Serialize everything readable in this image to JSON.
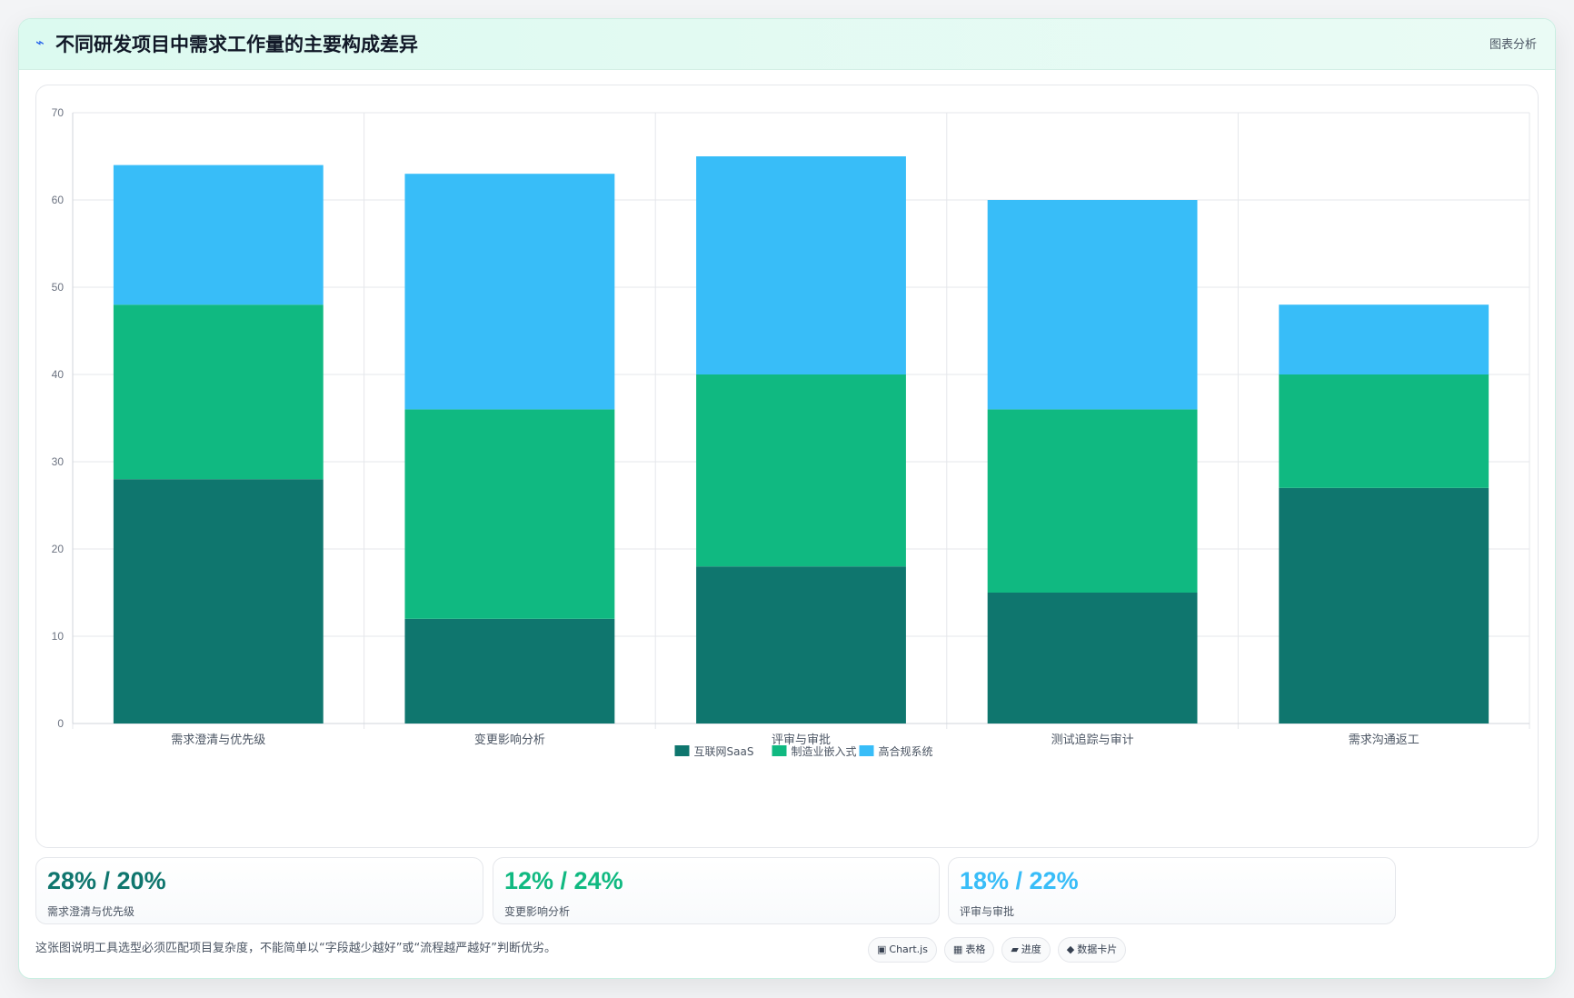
{
  "header": {
    "icon": "spark-icon",
    "title": "不同研发项目中需求工作量的主要构成差异",
    "tag": "图表分析"
  },
  "chart_data": {
    "type": "bar",
    "stacked": true,
    "categories": [
      "需求澄清与优先级",
      "变更影响分析",
      "评审与审批",
      "测试追踪与审计",
      "需求沟通返工"
    ],
    "series": [
      {
        "name": "互联网SaaS",
        "color": "#0f766e",
        "values": [
          28,
          12,
          18,
          15,
          27
        ]
      },
      {
        "name": "制造业嵌入式",
        "color": "#10b981",
        "values": [
          20,
          24,
          22,
          21,
          13
        ]
      },
      {
        "name": "高合规系统",
        "color": "#38bdf8",
        "values": [
          16,
          27,
          25,
          24,
          8
        ]
      }
    ],
    "ylim": [
      0,
      70
    ],
    "yticks": [
      0,
      10,
      20,
      30,
      40,
      50,
      60,
      70
    ],
    "grid": true,
    "legend": "bottom"
  },
  "stats": [
    {
      "value": "28% / 20%",
      "label": "需求澄清与优先级",
      "color": "#0f766e"
    },
    {
      "value": "12% / 24%",
      "label": "变更影响分析",
      "color": "#10b981"
    },
    {
      "value": "18% / 22%",
      "label": "评审与审批",
      "color": "#38bdf8"
    }
  ],
  "footnote": "这张图说明工具选型必须匹配项目复杂度，不能简单以“字段越少越好”或“流程越严越好”判断优劣。",
  "chips": [
    {
      "icon": "▣",
      "label": "Chart.js"
    },
    {
      "icon": "▦",
      "label": "表格"
    },
    {
      "icon": "▰",
      "label": "进度"
    },
    {
      "icon": "◆",
      "label": "数据卡片"
    }
  ]
}
